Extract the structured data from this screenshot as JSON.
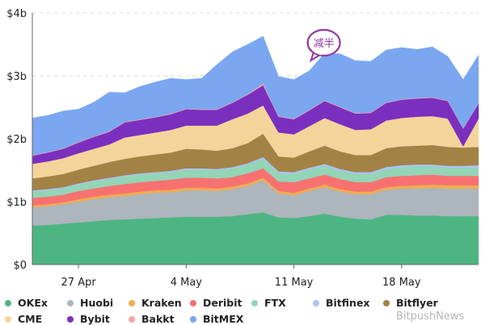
{
  "watermark": "BitpushNews",
  "chart_data": {
    "type": "area",
    "stacked": true,
    "title": "",
    "xlabel": "",
    "ylabel": "",
    "ylim": [
      0,
      4
    ],
    "y_ticks": [
      "$0",
      "$1b",
      "$2b",
      "$3b",
      "$4b"
    ],
    "x_ticks": [
      "27 Apr",
      "4 May",
      "11 May",
      "18 May"
    ],
    "grid": "horizontal dashed",
    "legend_position": "bottom",
    "annotation": {
      "text": "减半",
      "date": "12 May",
      "color": "#8e3a9d"
    },
    "x": [
      "24 Apr",
      "25 Apr",
      "26 Apr",
      "27 Apr",
      "28 Apr",
      "29 Apr",
      "30 Apr",
      "1 May",
      "2 May",
      "3 May",
      "4 May",
      "5 May",
      "6 May",
      "7 May",
      "8 May",
      "9 May",
      "10 May",
      "11 May",
      "12 May",
      "13 May",
      "14 May",
      "15 May",
      "16 May",
      "17 May",
      "18 May",
      "19 May",
      "20 May",
      "21 May",
      "22 May",
      "23 May"
    ],
    "series": [
      {
        "name": "OKEx",
        "color": "#4db582",
        "values": [
          0.62,
          0.63,
          0.65,
          0.67,
          0.69,
          0.71,
          0.72,
          0.73,
          0.74,
          0.75,
          0.76,
          0.76,
          0.76,
          0.77,
          0.8,
          0.83,
          0.75,
          0.74,
          0.77,
          0.81,
          0.76,
          0.73,
          0.72,
          0.79,
          0.79,
          0.78,
          0.78,
          0.77,
          0.77,
          0.77
        ]
      },
      {
        "name": "Huobi",
        "color": "#adb5bd",
        "values": [
          0.29,
          0.3,
          0.31,
          0.33,
          0.35,
          0.36,
          0.37,
          0.39,
          0.4,
          0.4,
          0.42,
          0.42,
          0.41,
          0.43,
          0.45,
          0.51,
          0.38,
          0.36,
          0.4,
          0.42,
          0.4,
          0.39,
          0.4,
          0.4,
          0.42,
          0.43,
          0.44,
          0.44,
          0.44,
          0.44
        ]
      },
      {
        "name": "Kraken",
        "color": "#f0ad4e",
        "values": [
          0.03,
          0.03,
          0.03,
          0.04,
          0.04,
          0.04,
          0.04,
          0.04,
          0.04,
          0.04,
          0.04,
          0.04,
          0.04,
          0.04,
          0.04,
          0.04,
          0.04,
          0.04,
          0.04,
          0.04,
          0.04,
          0.04,
          0.04,
          0.04,
          0.04,
          0.05,
          0.05,
          0.05,
          0.05,
          0.05
        ]
      },
      {
        "name": "Deribit",
        "color": "#f87171",
        "values": [
          0.12,
          0.12,
          0.12,
          0.13,
          0.13,
          0.14,
          0.15,
          0.15,
          0.15,
          0.16,
          0.16,
          0.16,
          0.16,
          0.15,
          0.16,
          0.15,
          0.15,
          0.17,
          0.16,
          0.16,
          0.16,
          0.15,
          0.15,
          0.16,
          0.16,
          0.16,
          0.16,
          0.15,
          0.15,
          0.15
        ]
      },
      {
        "name": "FTX",
        "color": "#93d5b6",
        "values": [
          0.1,
          0.1,
          0.1,
          0.1,
          0.11,
          0.11,
          0.12,
          0.12,
          0.12,
          0.12,
          0.13,
          0.13,
          0.13,
          0.14,
          0.14,
          0.15,
          0.13,
          0.13,
          0.14,
          0.14,
          0.13,
          0.13,
          0.13,
          0.13,
          0.14,
          0.14,
          0.13,
          0.13,
          0.13,
          0.13
        ]
      },
      {
        "name": "Bitfinex",
        "color": "#a9c4f5",
        "values": [
          0.02,
          0.02,
          0.02,
          0.02,
          0.02,
          0.02,
          0.02,
          0.02,
          0.02,
          0.02,
          0.02,
          0.02,
          0.02,
          0.02,
          0.02,
          0.03,
          0.03,
          0.03,
          0.03,
          0.03,
          0.03,
          0.03,
          0.03,
          0.03,
          0.03,
          0.03,
          0.03,
          0.03,
          0.03,
          0.04
        ]
      },
      {
        "name": "Bitflyer",
        "color": "#a38246",
        "values": [
          0.19,
          0.2,
          0.21,
          0.22,
          0.23,
          0.25,
          0.26,
          0.27,
          0.28,
          0.29,
          0.31,
          0.3,
          0.29,
          0.3,
          0.32,
          0.37,
          0.24,
          0.23,
          0.26,
          0.29,
          0.28,
          0.27,
          0.27,
          0.3,
          0.3,
          0.3,
          0.31,
          0.3,
          0.29,
          0.29
        ]
      },
      {
        "name": "CME",
        "color": "#f5d49b",
        "values": [
          0.23,
          0.24,
          0.25,
          0.26,
          0.27,
          0.28,
          0.34,
          0.34,
          0.35,
          0.36,
          0.37,
          0.38,
          0.4,
          0.46,
          0.47,
          0.45,
          0.38,
          0.37,
          0.4,
          0.44,
          0.43,
          0.4,
          0.41,
          0.44,
          0.45,
          0.46,
          0.46,
          0.45,
          0.02,
          0.45
        ]
      },
      {
        "name": "Bybit",
        "color": "#7b2fbf",
        "values": [
          0.13,
          0.14,
          0.15,
          0.17,
          0.19,
          0.2,
          0.24,
          0.24,
          0.24,
          0.25,
          0.26,
          0.25,
          0.25,
          0.26,
          0.3,
          0.32,
          0.25,
          0.24,
          0.25,
          0.27,
          0.27,
          0.26,
          0.26,
          0.28,
          0.29,
          0.29,
          0.29,
          0.28,
          0.28,
          0.24
        ]
      },
      {
        "name": "Bakkt",
        "color": "#f4a6a6",
        "values": [
          0.01,
          0.01,
          0.01,
          0.01,
          0.01,
          0.01,
          0.01,
          0.01,
          0.01,
          0.01,
          0.01,
          0.01,
          0.01,
          0.01,
          0.01,
          0.03,
          0.01,
          0.01,
          0.01,
          0.01,
          0.01,
          0.01,
          0.01,
          0.01,
          0.01,
          0.01,
          0.01,
          0.01,
          0.01,
          0.01
        ]
      },
      {
        "name": "BitMEX",
        "color": "#7aa7f0",
        "values": [
          0.59,
          0.58,
          0.59,
          0.52,
          0.54,
          0.62,
          0.46,
          0.52,
          0.55,
          0.56,
          0.46,
          0.49,
          0.71,
          0.8,
          0.79,
          0.75,
          0.63,
          0.62,
          0.62,
          0.75,
          0.84,
          0.83,
          0.81,
          0.83,
          0.82,
          0.77,
          0.8,
          0.7,
          0.77,
          0.76
        ]
      }
    ],
    "legend_order": [
      "OKEx",
      "Huobi",
      "Kraken",
      "Deribit",
      "FTX",
      "Bitfinex",
      "Bitflyer",
      "CME",
      "Bybit",
      "Bakkt",
      "BitMEX"
    ]
  }
}
